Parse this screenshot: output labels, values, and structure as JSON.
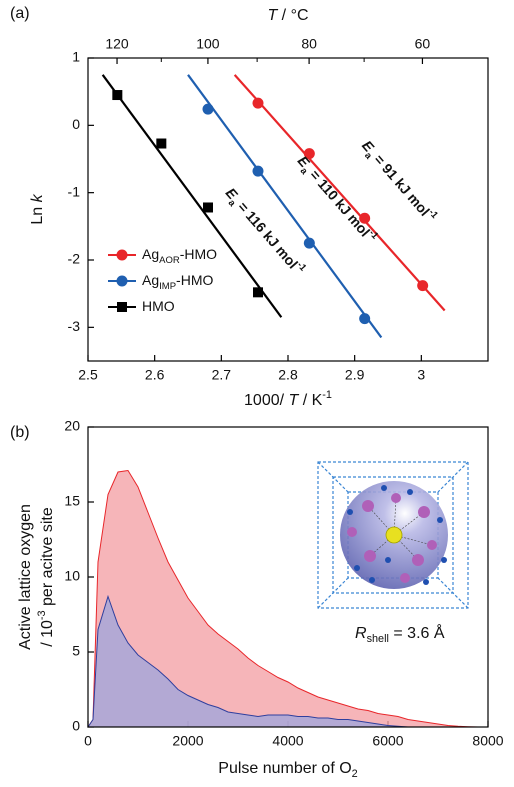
{
  "chart_data": [
    {
      "type": "scatter",
      "panel_label": "(a)",
      "x_label": [
        "1000/ ",
        {
          "it": "T"
        },
        " / K",
        {
          "sup": "-1"
        }
      ],
      "y_label": [
        "Ln ",
        {
          "it": "k"
        }
      ],
      "x2_label": [
        {
          "it": "T"
        },
        " / °C"
      ],
      "xlim": [
        2.5,
        3.1
      ],
      "xticks": [
        2.5,
        2.6,
        2.7,
        2.8,
        2.9,
        3.0
      ],
      "ylim": [
        -3.5,
        1
      ],
      "yticks": [
        -3,
        -2,
        -1,
        0,
        1
      ],
      "x2_scale": "reciprocal_kelvin",
      "x2ticks": [
        120,
        100,
        80,
        60
      ],
      "x2minorticks": [
        110,
        90,
        70
      ],
      "legend": "lower left",
      "series": [
        {
          "name": [
            "Ag",
            {
              "sub": "AOR"
            },
            "-HMO"
          ],
          "color": "#e8262a",
          "marker": "circle",
          "x": [
            2.755,
            2.832,
            2.915,
            3.002
          ],
          "values": [
            0.33,
            -0.42,
            -1.38,
            -2.38
          ],
          "fit": {
            "x": [
              2.72,
              3.035
            ],
            "y": [
              0.75,
              -2.75
            ]
          }
        },
        {
          "name": [
            "Ag",
            {
              "sub": "IMP"
            },
            "-HMO"
          ],
          "color": "#1f5fb0",
          "marker": "circle",
          "x": [
            2.68,
            2.755,
            2.832,
            2.915
          ],
          "values": [
            0.24,
            -0.68,
            -1.75,
            -2.87
          ],
          "fit": {
            "x": [
              2.65,
              2.94
            ],
            "y": [
              0.75,
              -3.15
            ]
          }
        },
        {
          "name": [
            "HMO"
          ],
          "color": "#000000",
          "marker": "square",
          "x": [
            2.544,
            2.61,
            2.68,
            2.755
          ],
          "values": [
            0.45,
            -0.27,
            -1.22,
            -2.48
          ],
          "fit": {
            "x": [
              2.522,
              2.79
            ],
            "y": [
              0.75,
              -2.85
            ]
          }
        }
      ],
      "annotations": [
        {
          "text": [
            {
              "it": "E"
            },
            {
              "sub": "a"
            },
            " = 91 kJ mol",
            {
              "sup": "-1"
            }
          ],
          "color": "#e8262a"
        },
        {
          "text": [
            {
              "it": "E"
            },
            {
              "sub": "a"
            },
            " = 110 kJ mol",
            {
              "sup": "-1"
            }
          ],
          "color": "#1f5fb0"
        },
        {
          "text": [
            {
              "it": "E"
            },
            {
              "sub": "a"
            },
            " = 116 kJ mol",
            {
              "sup": "-1"
            }
          ],
          "color": "#000000"
        }
      ]
    },
    {
      "type": "area",
      "panel_label": "(b)",
      "x_label": [
        "Pulse number of O",
        {
          "sub": "2"
        }
      ],
      "y_label": [
        "Active lattice oxygen"
      ],
      "y_label2": [
        "/ 10",
        {
          "sup": "-3"
        },
        " per acitve site"
      ],
      "inset_label": [
        {
          "it": "R"
        },
        {
          "sub": "shell"
        },
        " = 3.6 Å"
      ],
      "xlim": [
        0,
        8000
      ],
      "xticks": [
        0,
        2000,
        4000,
        6000,
        8000
      ],
      "ylim": [
        0,
        20
      ],
      "yticks": [
        0,
        5,
        10,
        15,
        20
      ],
      "x": [
        0,
        100,
        200,
        400,
        600,
        800,
        1000,
        1200,
        1400,
        1600,
        1800,
        2000,
        2200,
        2400,
        2600,
        2800,
        3000,
        3200,
        3400,
        3600,
        3800,
        4000,
        4200,
        4400,
        4600,
        4800,
        5000,
        5200,
        5400,
        5600,
        5800,
        6000,
        6200,
        6400,
        6600,
        6800,
        7000,
        7200,
        7400,
        7600,
        7800
      ],
      "series": [
        {
          "color": "#e8262a",
          "fill": "#f4a3a8",
          "values": [
            0,
            0.5,
            11,
            15.5,
            17,
            17.1,
            16,
            14.3,
            12.6,
            11,
            9.8,
            8.6,
            7.7,
            6.8,
            6.2,
            5.7,
            5.2,
            4.6,
            4.1,
            3.7,
            3.3,
            3.0,
            2.6,
            2.3,
            2.0,
            1.8,
            1.6,
            1.4,
            1.2,
            1.1,
            0.9,
            0.8,
            0.7,
            0.5,
            0.4,
            0.3,
            0.2,
            0.1,
            0.05,
            0.02,
            0
          ]
        },
        {
          "color": "#2f3f9e",
          "fill": "#a3a6db",
          "values": [
            0,
            0.5,
            6.5,
            8.7,
            6.8,
            5.6,
            4.8,
            4.3,
            3.8,
            3.2,
            2.5,
            2.1,
            1.8,
            1.5,
            1.3,
            1.0,
            0.9,
            0.8,
            0.7,
            0.8,
            0.8,
            0.8,
            0.7,
            0.7,
            0.6,
            0.6,
            0.5,
            0.5,
            0.4,
            0.3,
            0.2,
            0.1,
            0.05,
            0,
            0,
            0,
            0,
            0,
            0,
            0,
            0
          ]
        }
      ]
    }
  ]
}
